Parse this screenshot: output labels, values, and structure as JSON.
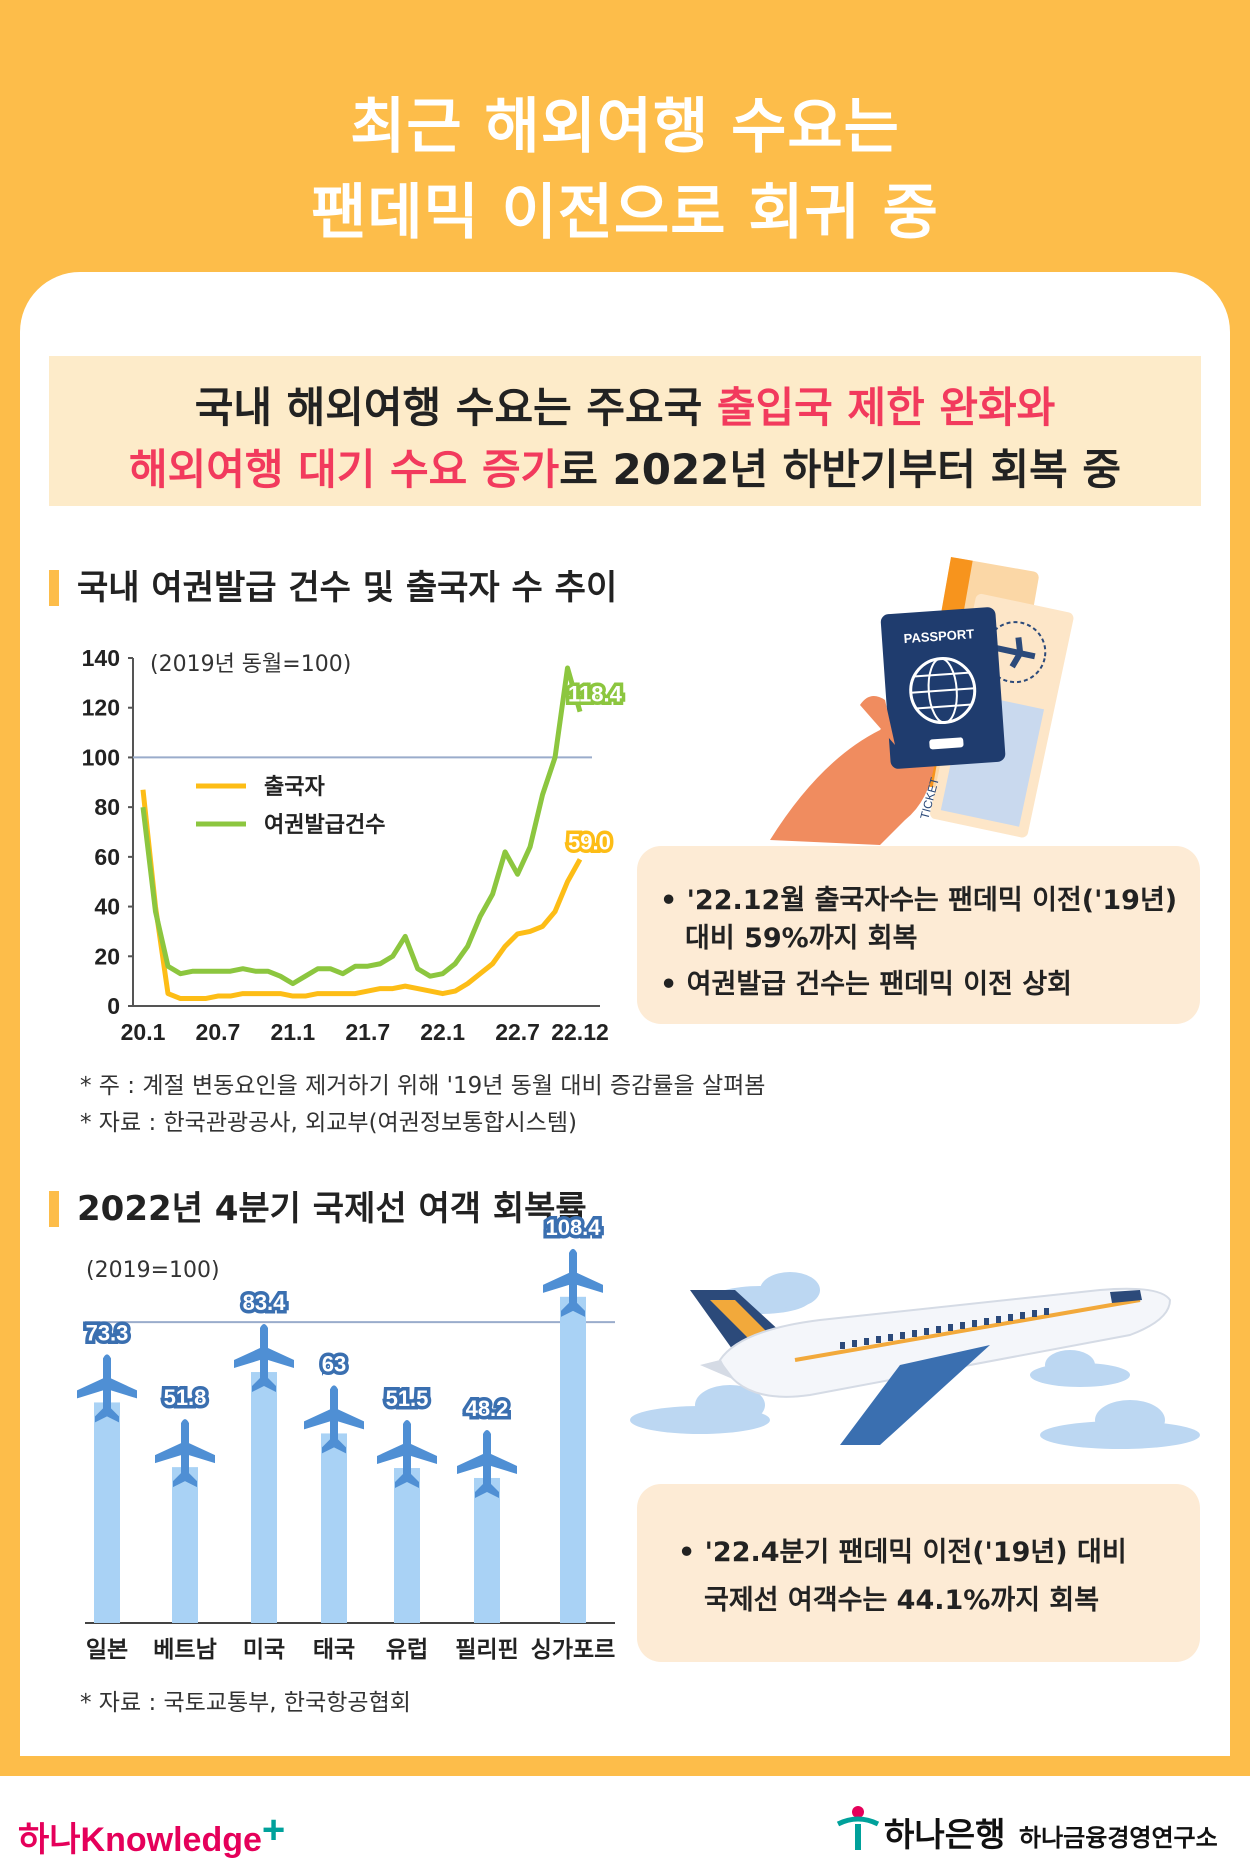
{
  "title": {
    "line1": "최근 해외여행 수요는",
    "line2": "팬데믹 이전으로 회귀 중"
  },
  "headline": {
    "l1_a": "국내 해외여행 수요는 주요국 ",
    "l1_b": "출입국 제한 완화와",
    "l2_a": "해외여행 대기 수요 증가",
    "l2_b": "로 2022년 하반기부터 회복 중"
  },
  "section1": {
    "title": "국내 여권발급 건수 및 출국자 수 추이",
    "unit": "(2019년 동월=100)",
    "notes": [
      "* 주 : 계절 변동요인을 제거하기 위해 '19년 동월 대비 증감률을 살펴봄",
      "* 자료 : 한국관광공사, 외교부(여권정보통합시스템)"
    ],
    "bullets": [
      "• '22.12월 출국자수는 팬데믹 이전('19년)",
      "대비 59%까지 회복",
      "• 여권발급 건수는 팬데믹 이전 상회"
    ]
  },
  "section2": {
    "title": "2022년 4분기 국제선 여객 회복률",
    "unit": "(2019=100)",
    "note": "* 자료 : 국토교통부, 한국항공협회",
    "bullets": [
      "• '22.4분기 팬데믹 이전('19년) 대비",
      "국제선 여객수는 44.1%까지 회복"
    ]
  },
  "illustration": {
    "passport_text": "PASSPORT",
    "ticket_text": "TICKET"
  },
  "footer": {
    "left_brand": "하나Knowledge",
    "left_plus": "+",
    "bank": "하나은행",
    "institute": "하나금융경영연구소"
  },
  "colors": {
    "orange": "#fdbd4a",
    "pink": "#f23a5d",
    "line_departures": "#fdbd16",
    "line_passports": "#8cc63f",
    "bar": "#a9d2f5",
    "label_blue": "#3a6fb0"
  },
  "chart_data": [
    {
      "type": "line",
      "title": "국내 여권발급 건수 및 출국자 수 추이",
      "ylabel": "(2019년 동월=100)",
      "ylim": [
        0,
        140
      ],
      "yticks": [
        0,
        20,
        40,
        60,
        80,
        100,
        120,
        140
      ],
      "xticks": [
        "20.1",
        "20.7",
        "21.1",
        "21.7",
        "22.1",
        "22.7",
        "22.12"
      ],
      "x": [
        "20.1",
        "20.2",
        "20.3",
        "20.4",
        "20.5",
        "20.6",
        "20.7",
        "20.8",
        "20.9",
        "20.10",
        "20.11",
        "20.12",
        "21.1",
        "21.2",
        "21.3",
        "21.4",
        "21.5",
        "21.6",
        "21.7",
        "21.8",
        "21.9",
        "21.10",
        "21.11",
        "21.12",
        "22.1",
        "22.2",
        "22.3",
        "22.4",
        "22.5",
        "22.6",
        "22.7",
        "22.8",
        "22.9",
        "22.10",
        "22.11",
        "22.12"
      ],
      "reference_line": 100,
      "legend_position": "upper-left",
      "series": [
        {
          "name": "출국자",
          "color": "#fdbd16",
          "values": [
            87,
            40,
            5,
            3,
            3,
            3,
            4,
            4,
            5,
            5,
            5,
            5,
            4,
            4,
            5,
            5,
            5,
            5,
            6,
            7,
            7,
            8,
            7,
            6,
            5,
            6,
            9,
            13,
            17,
            24,
            29,
            30,
            32,
            38,
            50,
            59.0
          ],
          "end_label": "59.0"
        },
        {
          "name": "여권발급건수",
          "color": "#8cc63f",
          "values": [
            80,
            38,
            16,
            13,
            14,
            14,
            14,
            14,
            15,
            14,
            14,
            12,
            9,
            12,
            15,
            15,
            13,
            16,
            16,
            17,
            20,
            28,
            15,
            12,
            13,
            17,
            24,
            36,
            45,
            62,
            53,
            64,
            85,
            100,
            136,
            118.4
          ],
          "end_label": "118.4"
        }
      ]
    },
    {
      "type": "bar",
      "title": "2022년 4분기 국제선 여객 회복률",
      "ylabel": "(2019=100)",
      "reference_line": 100,
      "categories": [
        "일본",
        "베트남",
        "미국",
        "태국",
        "유럽",
        "필리핀",
        "싱가포르"
      ],
      "values": [
        73.3,
        51.8,
        83.4,
        63,
        51.5,
        48.2,
        108.4
      ],
      "labels": [
        "73.3",
        "51.8",
        "83.4",
        "63",
        "51.5",
        "48.2",
        "108.4"
      ]
    }
  ]
}
